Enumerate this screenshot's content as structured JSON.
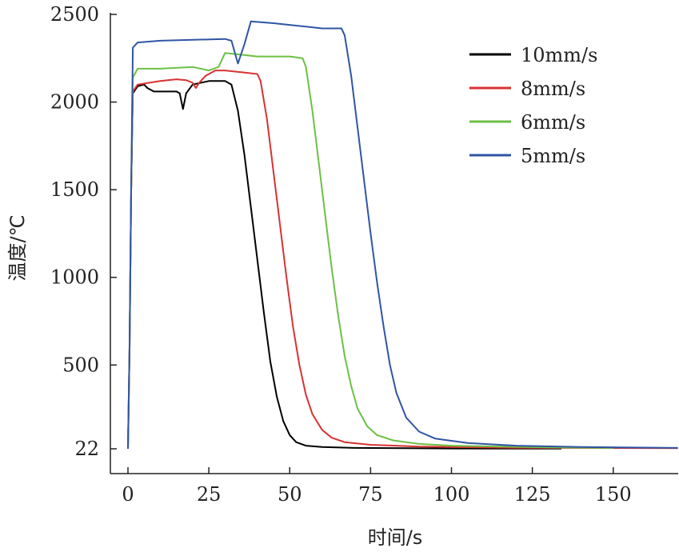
{
  "chart_data": {
    "type": "line",
    "title": "",
    "xlabel": "时间/s",
    "ylabel": "温度/℃",
    "xlim": [
      0,
      170
    ],
    "ylim": [
      22,
      2500
    ],
    "x_ticks": [
      0,
      25,
      50,
      75,
      100,
      125,
      150
    ],
    "y_ticks": [
      22,
      500,
      1000,
      1500,
      2000,
      2500
    ],
    "grid": false,
    "legend_position": "top-right",
    "series": [
      {
        "name": "10mm/s",
        "color": "#000000",
        "points": [
          [
            0,
            22
          ],
          [
            0.5,
            600
          ],
          [
            1,
            1500
          ],
          [
            1.5,
            2050
          ],
          [
            3,
            2090
          ],
          [
            5,
            2100
          ],
          [
            6,
            2080
          ],
          [
            8,
            2060
          ],
          [
            10,
            2060
          ],
          [
            15,
            2060
          ],
          [
            16,
            2050
          ],
          [
            17,
            1960
          ],
          [
            18,
            2050
          ],
          [
            20,
            2100
          ],
          [
            25,
            2120
          ],
          [
            30,
            2120
          ],
          [
            32,
            2100
          ],
          [
            34,
            1950
          ],
          [
            36,
            1700
          ],
          [
            38,
            1400
          ],
          [
            40,
            1100
          ],
          [
            42,
            800
          ],
          [
            44,
            520
          ],
          [
            46,
            320
          ],
          [
            48,
            180
          ],
          [
            50,
            100
          ],
          [
            52,
            60
          ],
          [
            55,
            40
          ],
          [
            60,
            32
          ],
          [
            70,
            27
          ],
          [
            100,
            24
          ],
          [
            134,
            23
          ]
        ]
      },
      {
        "name": "8mm/s",
        "color": "#d83232",
        "points": [
          [
            0,
            22
          ],
          [
            0.5,
            600
          ],
          [
            1,
            1500
          ],
          [
            1.5,
            2060
          ],
          [
            3,
            2100
          ],
          [
            10,
            2120
          ],
          [
            15,
            2130
          ],
          [
            18,
            2125
          ],
          [
            20,
            2110
          ],
          [
            21,
            2080
          ],
          [
            22,
            2110
          ],
          [
            24,
            2150
          ],
          [
            27,
            2180
          ],
          [
            30,
            2180
          ],
          [
            35,
            2170
          ],
          [
            40,
            2160
          ],
          [
            41,
            2120
          ],
          [
            43,
            1900
          ],
          [
            45,
            1600
          ],
          [
            47,
            1300
          ],
          [
            49,
            1000
          ],
          [
            51,
            720
          ],
          [
            53,
            500
          ],
          [
            55,
            330
          ],
          [
            57,
            220
          ],
          [
            60,
            130
          ],
          [
            63,
            85
          ],
          [
            67,
            60
          ],
          [
            75,
            45
          ],
          [
            90,
            35
          ],
          [
            120,
            28
          ],
          [
            170,
            25
          ]
        ]
      },
      {
        "name": "6mm/s",
        "color": "#6cc044",
        "points": [
          [
            0,
            22
          ],
          [
            0.5,
            600
          ],
          [
            1,
            1500
          ],
          [
            1.5,
            2140
          ],
          [
            3,
            2190
          ],
          [
            10,
            2190
          ],
          [
            20,
            2200
          ],
          [
            25,
            2180
          ],
          [
            28,
            2200
          ],
          [
            30,
            2280
          ],
          [
            35,
            2270
          ],
          [
            40,
            2260
          ],
          [
            45,
            2260
          ],
          [
            50,
            2260
          ],
          [
            54,
            2250
          ],
          [
            55,
            2200
          ],
          [
            57,
            1950
          ],
          [
            59,
            1650
          ],
          [
            61,
            1350
          ],
          [
            63,
            1050
          ],
          [
            65,
            780
          ],
          [
            67,
            550
          ],
          [
            69,
            380
          ],
          [
            71,
            250
          ],
          [
            74,
            150
          ],
          [
            77,
            100
          ],
          [
            82,
            70
          ],
          [
            90,
            50
          ],
          [
            100,
            40
          ],
          [
            130,
            30
          ],
          [
            150,
            27
          ]
        ]
      },
      {
        "name": "5mm/s",
        "color": "#2f55a4",
        "points": [
          [
            0,
            22
          ],
          [
            0.5,
            600
          ],
          [
            1,
            1500
          ],
          [
            1.5,
            2310
          ],
          [
            3,
            2340
          ],
          [
            10,
            2350
          ],
          [
            20,
            2355
          ],
          [
            30,
            2360
          ],
          [
            32,
            2350
          ],
          [
            34,
            2220
          ],
          [
            36,
            2330
          ],
          [
            38,
            2460
          ],
          [
            45,
            2450
          ],
          [
            55,
            2430
          ],
          [
            60,
            2420
          ],
          [
            66,
            2420
          ],
          [
            67,
            2380
          ],
          [
            69,
            2150
          ],
          [
            71,
            1850
          ],
          [
            73,
            1550
          ],
          [
            75,
            1250
          ],
          [
            77,
            970
          ],
          [
            79,
            720
          ],
          [
            81,
            500
          ],
          [
            83,
            340
          ],
          [
            86,
            200
          ],
          [
            90,
            120
          ],
          [
            95,
            80
          ],
          [
            105,
            55
          ],
          [
            120,
            40
          ],
          [
            140,
            32
          ],
          [
            170,
            27
          ]
        ]
      }
    ]
  }
}
